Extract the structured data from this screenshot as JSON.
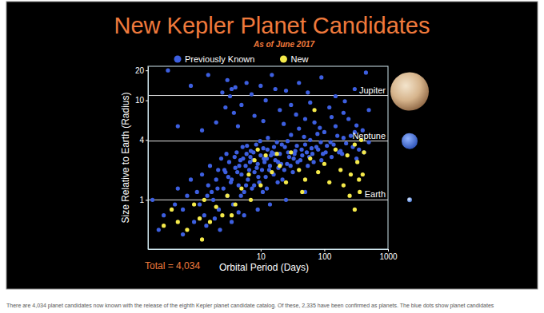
{
  "chart_data": {
    "type": "scatter",
    "title": "New Kepler Planet Candidates",
    "subtitle": "As of June 2017",
    "x_label": "Orbital Period (Days)",
    "y_label": "Size Relative to Earth (Radius)",
    "log": true,
    "grid": false,
    "legend": "top",
    "xlim": [
      0.17,
      1000
    ],
    "ylim": [
      0.32,
      22
    ],
    "xticks": [
      10,
      100,
      1000
    ],
    "yticks": [
      1,
      4,
      10,
      20
    ],
    "series": [
      {
        "name": "Previously Known",
        "color": "#3d5fe0",
        "x": [
          0.3,
          0.45,
          0.5,
          0.6,
          0.7,
          0.8,
          0.9,
          1.0,
          1.1,
          1.2,
          1.3,
          1.5,
          1.6,
          1.8,
          2.0,
          2.2,
          2.4,
          2.6,
          2.8,
          3.0,
          3.2,
          3.5,
          3.5,
          3.7,
          4.0,
          4.2,
          4.5,
          4.8,
          5.0,
          5.2,
          5.5,
          5.8,
          6.0,
          6.3,
          6.6,
          7.0,
          7.3,
          7.6,
          8.0,
          8.5,
          9.0,
          9.5,
          10,
          10.5,
          11,
          12,
          12.5,
          13,
          14,
          15,
          16,
          17,
          18,
          19,
          20,
          22,
          24,
          26,
          28,
          30,
          32,
          35,
          38,
          40,
          45,
          50,
          55,
          60,
          65,
          70,
          80,
          90,
          100,
          110,
          130,
          150,
          170,
          200,
          240,
          280,
          320,
          400,
          500,
          0.8,
          1.5,
          2.5,
          3.0,
          3.3,
          4.0,
          5.0,
          6.0,
          8,
          12,
          15,
          20,
          25,
          40,
          60,
          90,
          150,
          200,
          300,
          450,
          2.0,
          3.8,
          10,
          30,
          50,
          120,
          0.25,
          0.6,
          1.4,
          2.3,
          3.5,
          5.5,
          9,
          14,
          25,
          50,
          1.9,
          4.5,
          2.1,
          3.1,
          4.3,
          6.8,
          9.2,
          11.5,
          16.5,
          21,
          27,
          33,
          44,
          58,
          75,
          95,
          125,
          180,
          260,
          350,
          1.7,
          2.9,
          4.9,
          7.9,
          12.5,
          18.5,
          0.2,
          0.35,
          2.7,
          3.4,
          3.9,
          4.6,
          5.3,
          6.1,
          6.9,
          7.7,
          8.7,
          9.8,
          11.2,
          12.8,
          14.5,
          16.2,
          18.8,
          21.5,
          23.5,
          26.5,
          29.5,
          34,
          37,
          42,
          48,
          53,
          63,
          68,
          78,
          88,
          105,
          140,
          160,
          190,
          220,
          300,
          420,
          1.45,
          2.15,
          5.9,
          10.8,
          13.6,
          1.2,
          2.8,
          4.4,
          7.2,
          11,
          17,
          23,
          36,
          55,
          85,
          130,
          210,
          320,
          500,
          0.5
        ],
        "values": [
          0.7,
          0.9,
          1.3,
          0.8,
          1.1,
          1.6,
          0.6,
          1.2,
          0.9,
          1.8,
          0.7,
          1.4,
          2.2,
          1.0,
          1.6,
          0.8,
          2.6,
          1.3,
          1.9,
          1.1,
          2.4,
          13,
          1.6,
          0.9,
          2.1,
          3.0,
          1.4,
          2.5,
          1.8,
          3.4,
          1.2,
          2.2,
          2.9,
          1.6,
          2.0,
          3.1,
          1.3,
          2.5,
          1.9,
          3.6,
          2.3,
          1.5,
          2.8,
          2.0,
          3.3,
          1.7,
          2.6,
          4.2,
          2.2,
          3.0,
          1.8,
          2.5,
          3.8,
          2.1,
          2.9,
          1.6,
          3.4,
          2.3,
          2.7,
          4.5,
          1.9,
          3.1,
          2.4,
          5.2,
          2.8,
          3.6,
          2.2,
          4.0,
          2.9,
          6.0,
          3.2,
          2.5,
          4.8,
          3.5,
          2.7,
          5.5,
          3.0,
          4.2,
          6.5,
          3.4,
          2.6,
          5.0,
          3.8,
          14,
          18,
          12,
          16,
          11,
          13.5,
          9,
          15,
          7,
          10,
          18,
          8,
          12.5,
          15,
          9.5,
          17,
          11,
          7.5,
          13,
          19,
          6,
          7.5,
          14,
          9,
          6.5,
          8.5,
          0.5,
          0.45,
          0.55,
          0.5,
          0.6,
          0.7,
          0.8,
          0.9,
          1.0,
          1.2,
          0.65,
          0.75,
          1.3,
          1.7,
          1.9,
          2.4,
          1.7,
          2.4,
          2.9,
          2.3,
          3.0,
          2.6,
          3.2,
          2.7,
          3.4,
          2.9,
          3.8,
          3.1,
          4.4,
          3.2,
          1.2,
          2.9,
          1.1,
          1.4,
          1.3,
          1.5,
          1.0,
          20,
          2.0,
          1.5,
          2.7,
          2.2,
          2.6,
          3.5,
          2.7,
          3.0,
          2.1,
          3.9,
          2.6,
          3.2,
          2.8,
          3.4,
          2.4,
          3.6,
          2.0,
          3.9,
          2.2,
          2.9,
          3.5,
          2.5,
          4.3,
          3.0,
          3.3,
          2.4,
          4.6,
          3.8,
          3.0,
          3.6,
          4.4,
          2.9,
          3.7,
          4.8,
          3.0,
          1.1,
          2.0,
          1.4,
          1.2,
          2.0,
          5,
          8.5,
          5.5,
          11.5,
          6.2,
          13,
          5.8,
          7.2,
          12,
          5.3,
          6.8,
          9.8,
          5.6,
          8,
          5.5
        ]
      },
      {
        "name": "New",
        "color": "#f5ea4a",
        "x": [
          0.3,
          0.4,
          0.5,
          0.7,
          0.9,
          1.1,
          1.3,
          1.6,
          2.0,
          2.5,
          3.0,
          4.0,
          5.0,
          6.5,
          8.0,
          10,
          12,
          15,
          20,
          25,
          30,
          40,
          50,
          60,
          80,
          100,
          120,
          150,
          180,
          200,
          230,
          260,
          300,
          330,
          360,
          380,
          400,
          420,
          300,
          250,
          350,
          7,
          3.5,
          9,
          18,
          70,
          1.2,
          45
        ],
        "values": [
          0.55,
          0.8,
          0.6,
          0.5,
          0.9,
          0.65,
          1.0,
          0.6,
          0.85,
          0.7,
          1.1,
          0.9,
          1.3,
          1.8,
          2.5,
          1.4,
          2.8,
          1.9,
          2.2,
          1.5,
          3.0,
          2.0,
          1.6,
          2.6,
          1.9,
          2.3,
          1.5,
          3.2,
          2.0,
          1.4,
          2.8,
          1.8,
          3.6,
          2.4,
          1.2,
          4.0,
          1.8,
          3.0,
          0.8,
          1.1,
          1.6,
          1.0,
          0.7,
          3.2,
          2.9,
          8,
          0.4,
          1.2
        ]
      }
    ],
    "reference_lines": [
      {
        "label": "Jupiter",
        "value": 11.2
      },
      {
        "label": "Neptune",
        "value": 3.9
      },
      {
        "label": "Earth",
        "value": 1
      }
    ],
    "annotations": [
      "Total = 4,034"
    ],
    "caption": "There are 4,034 planet candidates now known with the release of the eighth Kepler planet candidate catalog. Of these, 2,335 have been confirmed as planets. The blue dots show planet candidates"
  }
}
